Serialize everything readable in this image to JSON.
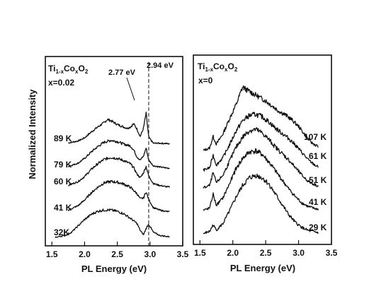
{
  "figure": {
    "ylabel": "Normalized Intensity"
  },
  "chart_data": [
    {
      "type": "line",
      "panel": "left",
      "title_parts": {
        "base1": "Ti",
        "sub1": "1-x",
        "base2": "Co",
        "sub2": "x",
        "base3": "O",
        "sub3": "2"
      },
      "composition": "x=0.02",
      "xlabel": "PL Energy (eV)",
      "ylabel": "Normalized Intensity",
      "xlim": [
        1.4,
        3.5
      ],
      "xticks": [
        "1.5",
        "2.0",
        "2.5",
        "3.0",
        "3.5"
      ],
      "dashed_line_x": 2.98,
      "annotations": [
        {
          "text": "2.77 eV",
          "x": 2.77
        },
        {
          "text": "2.94 eV",
          "x": 2.94
        }
      ],
      "series": [
        {
          "name": "89 K",
          "x": [
            1.75,
            1.9,
            2.0,
            2.1,
            2.2,
            2.3,
            2.35,
            2.4,
            2.45,
            2.5,
            2.55,
            2.6,
            2.65,
            2.7,
            2.75,
            2.8,
            2.85,
            2.9,
            2.94,
            2.98,
            3.05,
            3.15,
            3.25,
            3.3
          ],
          "y": [
            0.06,
            0.12,
            0.22,
            0.4,
            0.56,
            0.7,
            0.8,
            0.76,
            0.7,
            0.64,
            0.6,
            0.56,
            0.52,
            0.56,
            0.66,
            0.5,
            0.26,
            0.52,
            1.0,
            0.24,
            0.05,
            0.05,
            0.04,
            0.03
          ]
        },
        {
          "name": "79 K",
          "x": [
            1.75,
            1.9,
            2.0,
            2.1,
            2.2,
            2.3,
            2.4,
            2.5,
            2.6,
            2.7,
            2.75,
            2.8,
            2.85,
            2.9,
            2.94,
            2.98,
            3.05,
            3.15,
            3.25,
            3.3
          ],
          "y": [
            0.1,
            0.2,
            0.35,
            0.55,
            0.72,
            0.86,
            0.92,
            0.88,
            0.8,
            0.74,
            0.62,
            0.4,
            0.3,
            0.42,
            0.68,
            0.3,
            0.12,
            0.08,
            0.05,
            0.04
          ]
        },
        {
          "name": "60 K",
          "x": [
            1.75,
            1.9,
            2.0,
            2.1,
            2.2,
            2.3,
            2.4,
            2.5,
            2.6,
            2.7,
            2.75,
            2.8,
            2.85,
            2.9,
            2.94,
            2.98,
            3.05,
            3.15,
            3.25,
            3.3
          ],
          "y": [
            0.1,
            0.22,
            0.38,
            0.6,
            0.78,
            0.92,
            0.98,
            0.95,
            0.88,
            0.78,
            0.66,
            0.46,
            0.34,
            0.5,
            0.7,
            0.4,
            0.16,
            0.1,
            0.06,
            0.05
          ]
        },
        {
          "name": "41 K",
          "x": [
            1.75,
            1.9,
            2.0,
            2.1,
            2.2,
            2.3,
            2.4,
            2.5,
            2.6,
            2.7,
            2.8,
            2.85,
            2.9,
            2.94,
            2.98,
            3.05,
            3.15,
            3.25,
            3.3
          ],
          "y": [
            0.1,
            0.24,
            0.42,
            0.64,
            0.82,
            0.96,
            1.0,
            0.98,
            0.92,
            0.82,
            0.62,
            0.46,
            0.48,
            0.68,
            0.44,
            0.18,
            0.1,
            0.06,
            0.05
          ]
        },
        {
          "name": "32K",
          "x": [
            1.55,
            1.7,
            1.8,
            1.9,
            2.0,
            2.1,
            2.2,
            2.3,
            2.4,
            2.5,
            2.6,
            2.7,
            2.8,
            2.85,
            2.9,
            2.94,
            2.98,
            3.05,
            3.15,
            3.25,
            3.3
          ],
          "y": [
            0.0,
            0.06,
            0.16,
            0.36,
            0.56,
            0.72,
            0.82,
            0.86,
            0.86,
            0.82,
            0.74,
            0.6,
            0.44,
            0.22,
            0.08,
            0.28,
            0.42,
            0.16,
            0.06,
            0.03,
            0.02
          ]
        }
      ]
    },
    {
      "type": "line",
      "panel": "right",
      "title_parts": {
        "base1": "Ti",
        "sub1": "1-x",
        "base2": "Co",
        "sub2": "x",
        "base3": "O",
        "sub3": "2"
      },
      "composition": "x=0",
      "xlabel": "PL Energy (eV)",
      "xlim": [
        1.4,
        3.5
      ],
      "xticks": [
        "1.5",
        "2.0",
        "2.5",
        "3.0",
        "3.5"
      ],
      "series": [
        {
          "name": "107 K",
          "x": [
            1.55,
            1.65,
            1.7,
            1.75,
            1.85,
            1.95,
            2.05,
            2.1,
            2.15,
            2.2,
            2.3,
            2.4,
            2.5,
            2.6,
            2.7,
            2.8,
            2.9,
            3.0,
            3.1,
            3.2,
            3.3
          ],
          "y": [
            0.0,
            0.04,
            0.22,
            0.1,
            0.26,
            0.5,
            0.72,
            0.86,
            1.0,
            0.96,
            0.9,
            0.84,
            0.78,
            0.7,
            0.62,
            0.56,
            0.48,
            0.38,
            0.24,
            0.12,
            0.06
          ]
        },
        {
          "name": "61 K",
          "x": [
            1.55,
            1.65,
            1.7,
            1.75,
            1.85,
            1.95,
            2.05,
            2.15,
            2.25,
            2.35,
            2.45,
            2.55,
            2.65,
            2.75,
            2.85,
            2.95,
            3.05,
            3.15,
            3.25,
            3.3
          ],
          "y": [
            0.0,
            0.04,
            0.24,
            0.08,
            0.2,
            0.4,
            0.62,
            0.78,
            0.86,
            0.88,
            0.84,
            0.76,
            0.66,
            0.58,
            0.5,
            0.4,
            0.28,
            0.16,
            0.08,
            0.05
          ]
        },
        {
          "name": "51 K",
          "x": [
            1.55,
            1.65,
            1.7,
            1.75,
            1.85,
            1.95,
            2.05,
            2.15,
            2.25,
            2.35,
            2.45,
            2.55,
            2.65,
            2.75,
            2.85,
            2.95,
            3.05,
            3.15,
            3.25,
            3.3
          ],
          "y": [
            0.0,
            0.04,
            0.24,
            0.08,
            0.2,
            0.42,
            0.64,
            0.8,
            0.9,
            0.92,
            0.86,
            0.76,
            0.64,
            0.54,
            0.44,
            0.32,
            0.2,
            0.1,
            0.05,
            0.03
          ]
        },
        {
          "name": "41 K",
          "x": [
            1.55,
            1.65,
            1.7,
            1.75,
            1.85,
            1.95,
            2.05,
            2.15,
            2.25,
            2.35,
            2.45,
            2.55,
            2.65,
            2.75,
            2.85,
            2.95,
            3.05,
            3.15,
            3.25,
            3.3
          ],
          "y": [
            0.0,
            0.04,
            0.26,
            0.08,
            0.2,
            0.42,
            0.66,
            0.82,
            0.92,
            0.94,
            0.88,
            0.76,
            0.62,
            0.48,
            0.34,
            0.22,
            0.12,
            0.06,
            0.03,
            0.02
          ]
        },
        {
          "name": "29 K",
          "x": [
            1.55,
            1.65,
            1.7,
            1.75,
            1.85,
            1.95,
            2.05,
            2.15,
            2.25,
            2.35,
            2.45,
            2.55,
            2.65,
            2.75,
            2.85,
            2.95,
            3.05,
            3.15,
            3.25,
            3.3
          ],
          "y": [
            0.0,
            0.04,
            0.14,
            0.06,
            0.16,
            0.36,
            0.58,
            0.76,
            0.88,
            0.92,
            0.88,
            0.78,
            0.62,
            0.46,
            0.3,
            0.18,
            0.1,
            0.05,
            0.03,
            0.02
          ]
        }
      ]
    }
  ]
}
